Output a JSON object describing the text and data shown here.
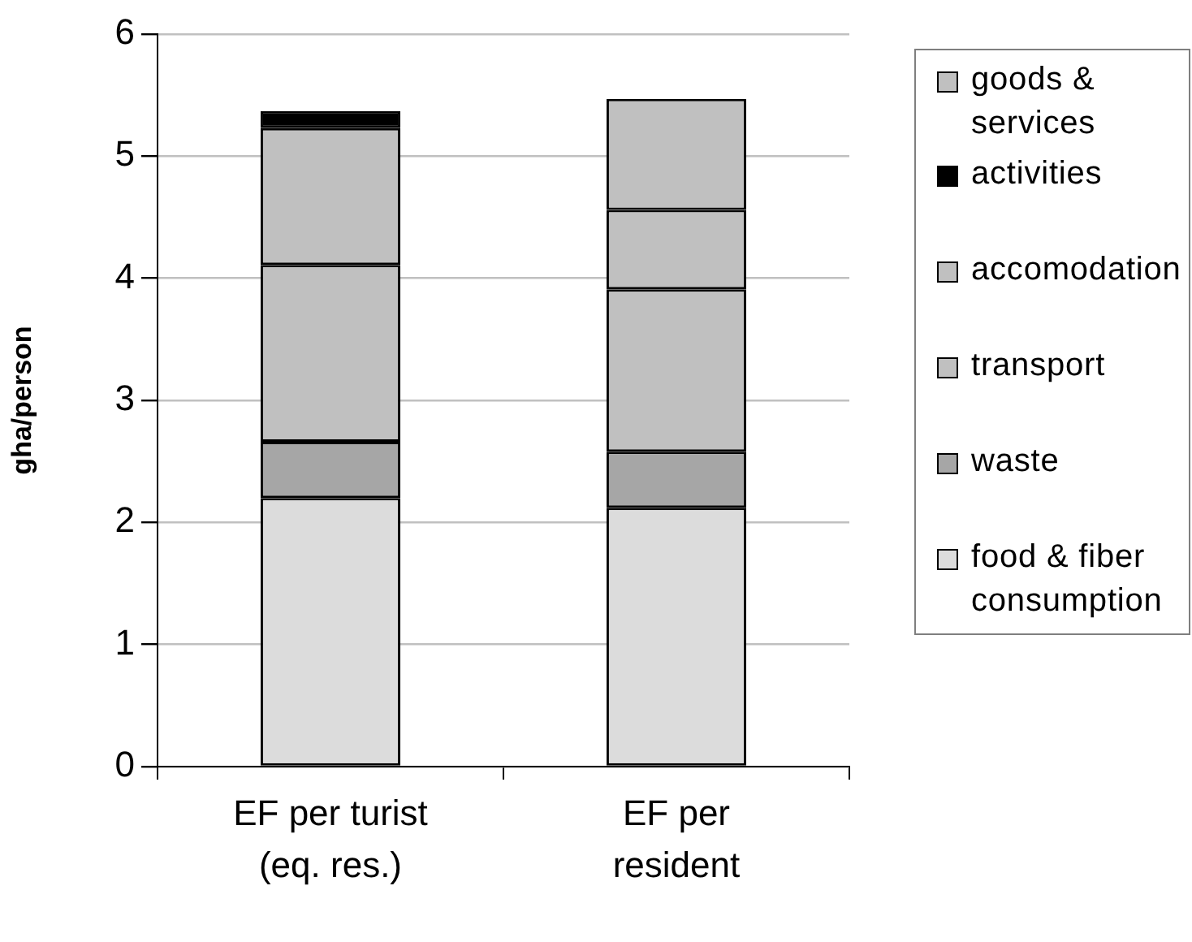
{
  "chart_data": {
    "type": "bar",
    "stacked": true,
    "categories": [
      "EF per turist (eq. res.)",
      "EF per resident"
    ],
    "ylabel": "gha/person",
    "ylim": [
      0,
      6
    ],
    "yticks": [
      0,
      1,
      2,
      3,
      4,
      5,
      6
    ],
    "grid": "y",
    "legend": "right",
    "series": [
      {
        "name": "food & fiber consumption",
        "color": "#dcdcdc",
        "values": [
          2.2,
          2.12
        ]
      },
      {
        "name": "waste",
        "color": "#a6a6a6",
        "values": [
          0.46,
          0.46
        ]
      },
      {
        "name": "transport",
        "color": "#c0c0c0",
        "values": [
          1.45,
          1.33
        ]
      },
      {
        "name": "accomodation",
        "color": "#c0c0c0",
        "values": [
          1.12,
          0.65
        ]
      },
      {
        "name": "activities",
        "color": "#000000",
        "values": [
          0.14,
          0
        ]
      },
      {
        "name": "goods & services",
        "color": "#c0c0c0",
        "values": [
          0,
          0.91
        ]
      }
    ]
  }
}
